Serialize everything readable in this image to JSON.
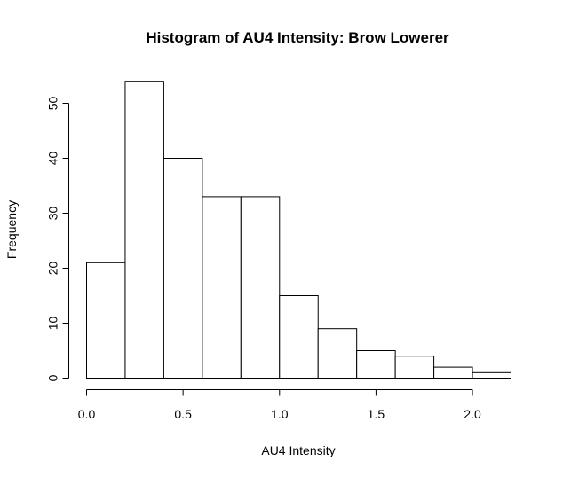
{
  "chart_data": {
    "type": "bar",
    "title": "Histogram of AU4 Intensity: Brow Lowerer",
    "xlabel": "AU4 Intensity",
    "ylabel": "Frequency",
    "bins": [
      {
        "x0": 0.0,
        "x1": 0.2,
        "count": 21
      },
      {
        "x0": 0.2,
        "x1": 0.4,
        "count": 54
      },
      {
        "x0": 0.4,
        "x1": 0.6,
        "count": 40
      },
      {
        "x0": 0.6,
        "x1": 0.8,
        "count": 33
      },
      {
        "x0": 0.8,
        "x1": 1.0,
        "count": 33
      },
      {
        "x0": 1.0,
        "x1": 1.2,
        "count": 15
      },
      {
        "x0": 1.2,
        "x1": 1.4,
        "count": 9
      },
      {
        "x0": 1.4,
        "x1": 1.6,
        "count": 5
      },
      {
        "x0": 1.6,
        "x1": 1.8,
        "count": 4
      },
      {
        "x0": 1.8,
        "x1": 2.0,
        "count": 2
      },
      {
        "x0": 2.0,
        "x1": 2.2,
        "count": 1
      }
    ],
    "xticks": [
      0.0,
      0.5,
      1.0,
      1.5,
      2.0
    ],
    "xtick_labels": [
      "0.0",
      "0.5",
      "1.0",
      "1.5",
      "2.0"
    ],
    "yticks": [
      0,
      10,
      20,
      30,
      40,
      50
    ],
    "ytick_labels": [
      "0",
      "10",
      "20",
      "30",
      "40",
      "50"
    ],
    "xlim": [
      0.0,
      2.2
    ],
    "ylim": [
      0,
      54
    ],
    "grid": false,
    "bar_fill": "#ffffff",
    "bar_stroke": "#000000"
  }
}
